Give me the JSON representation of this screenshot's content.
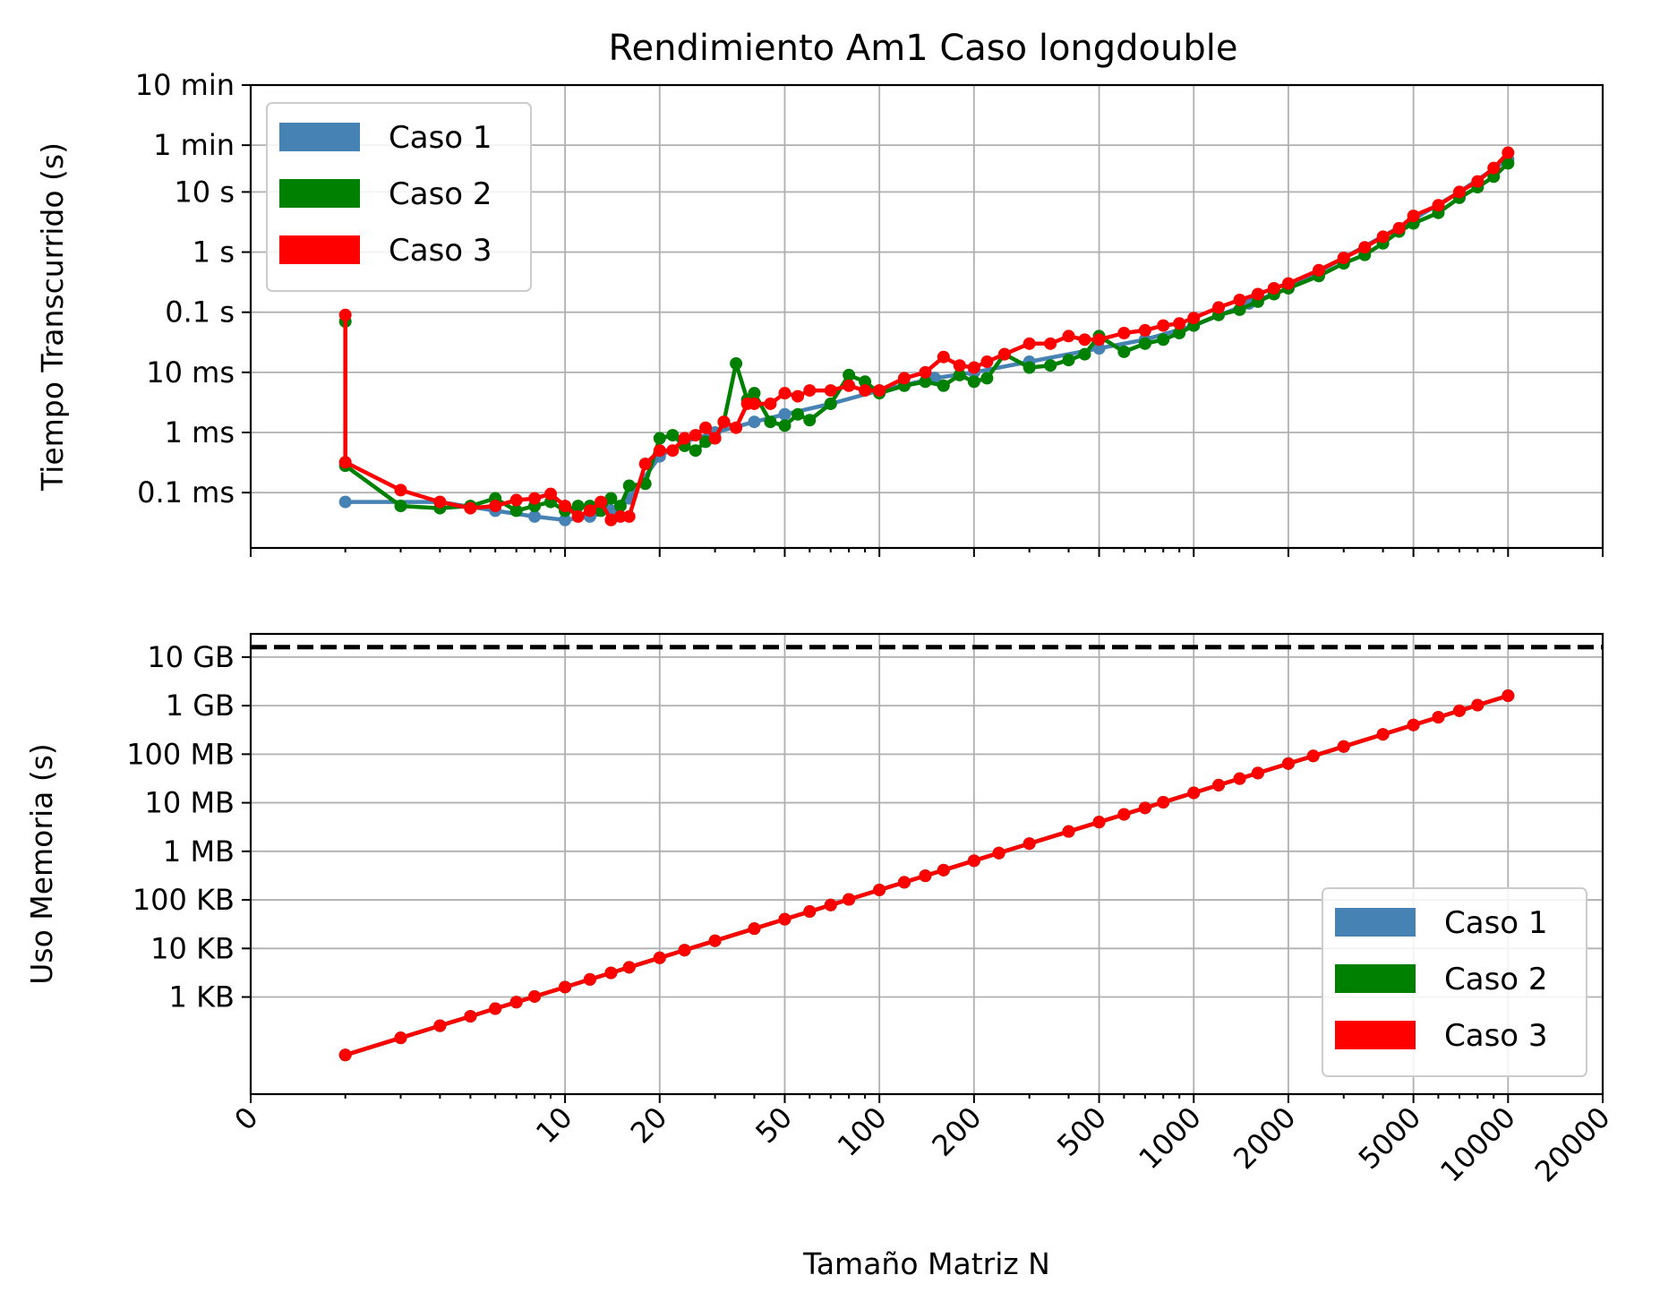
{
  "title": "Rendimiento Am1 Caso longdouble",
  "colors": {
    "Caso 1": "#4682b4",
    "Caso 2": "#008000",
    "Caso 3": "#ff0000"
  },
  "chart_data": [
    {
      "type": "line",
      "panel": "top",
      "title": "Rendimiento Am1 Caso longdouble",
      "xlabel": "",
      "ylabel": "Tiempo Transcurrido (s)",
      "xscale": "log",
      "yscale": "log",
      "xlim": [
        1,
        20000
      ],
      "ylim": [
        1.2e-05,
        600
      ],
      "grid": true,
      "legend": "top-left",
      "yticks": [
        {
          "value": 600,
          "label": "10 min"
        },
        {
          "value": 60,
          "label": "1 min"
        },
        {
          "value": 10,
          "label": "10 s"
        },
        {
          "value": 1,
          "label": "1 s"
        },
        {
          "value": 0.1,
          "label": "0.1 s"
        },
        {
          "value": 0.01,
          "label": "10 ms"
        },
        {
          "value": 0.001,
          "label": "1 ms"
        },
        {
          "value": 0.0001,
          "label": "0.1 ms"
        }
      ],
      "series": [
        {
          "name": "Caso 1",
          "x": [
            2,
            4,
            6,
            8,
            10,
            12,
            14,
            16,
            20,
            24,
            30,
            40,
            50,
            70,
            100,
            150,
            200,
            300,
            500,
            700,
            1000,
            1500,
            2000,
            3000,
            5000,
            7000,
            10000
          ],
          "y": [
            7e-05,
            7e-05,
            5e-05,
            4e-05,
            3.5e-05,
            4e-05,
            5e-05,
            8e-05,
            0.0004,
            0.0007,
            0.001,
            0.0015,
            0.002,
            0.003,
            0.005,
            0.008,
            0.01,
            0.015,
            0.025,
            0.035,
            0.06,
            0.14,
            0.25,
            0.8,
            3.5,
            10,
            35
          ]
        },
        {
          "name": "Caso 2",
          "x": [
            2,
            2,
            3,
            4,
            5,
            6,
            7,
            8,
            9,
            10,
            11,
            12,
            13,
            14,
            15,
            16,
            18,
            20,
            22,
            24,
            26,
            28,
            30,
            32,
            35,
            38,
            40,
            45,
            50,
            55,
            60,
            70,
            80,
            90,
            100,
            120,
            140,
            160,
            180,
            200,
            220,
            250,
            300,
            350,
            400,
            450,
            500,
            600,
            700,
            800,
            900,
            1000,
            1200,
            1400,
            1600,
            1800,
            2000,
            2500,
            3000,
            3500,
            4000,
            4500,
            5000,
            6000,
            7000,
            8000,
            9000,
            10000
          ],
          "y": [
            0.07,
            0.00028,
            6e-05,
            5.5e-05,
            6e-05,
            8e-05,
            5e-05,
            6e-05,
            7e-05,
            5e-05,
            6e-05,
            6e-05,
            5e-05,
            8e-05,
            6e-05,
            0.00013,
            0.00014,
            0.0008,
            0.0009,
            0.0006,
            0.0005,
            0.0007,
            0.0008,
            0.0015,
            0.014,
            0.0035,
            0.0045,
            0.0015,
            0.0013,
            0.002,
            0.0016,
            0.003,
            0.009,
            0.007,
            0.0045,
            0.006,
            0.007,
            0.006,
            0.009,
            0.007,
            0.008,
            0.02,
            0.012,
            0.013,
            0.016,
            0.02,
            0.04,
            0.022,
            0.03,
            0.035,
            0.045,
            0.06,
            0.09,
            0.11,
            0.15,
            0.2,
            0.25,
            0.4,
            0.65,
            0.9,
            1.4,
            2.2,
            3,
            4.5,
            8,
            12,
            18,
            30
          ]
        },
        {
          "name": "Caso 3",
          "x": [
            2,
            2,
            3,
            4,
            5,
            6,
            7,
            8,
            9,
            10,
            11,
            12,
            13,
            14,
            15,
            16,
            18,
            20,
            22,
            24,
            26,
            28,
            30,
            32,
            35,
            38,
            40,
            45,
            50,
            55,
            60,
            70,
            80,
            90,
            100,
            120,
            140,
            160,
            180,
            200,
            220,
            250,
            300,
            350,
            400,
            450,
            500,
            600,
            700,
            800,
            900,
            1000,
            1200,
            1400,
            1600,
            1800,
            2000,
            2500,
            3000,
            3500,
            4000,
            4500,
            5000,
            6000,
            7000,
            8000,
            9000,
            10000
          ],
          "y": [
            0.09,
            0.00032,
            0.00011,
            7e-05,
            5.5e-05,
            6e-05,
            7.5e-05,
            8e-05,
            9.5e-05,
            6e-05,
            4e-05,
            5e-05,
            7e-05,
            3.5e-05,
            4e-05,
            4e-05,
            0.0003,
            0.0005,
            0.0005,
            0.0008,
            0.0009,
            0.0012,
            0.0008,
            0.0015,
            0.0012,
            0.003,
            0.003,
            0.003,
            0.0045,
            0.004,
            0.005,
            0.005,
            0.006,
            0.005,
            0.005,
            0.008,
            0.01,
            0.018,
            0.013,
            0.012,
            0.015,
            0.02,
            0.03,
            0.03,
            0.04,
            0.035,
            0.035,
            0.045,
            0.05,
            0.06,
            0.065,
            0.08,
            0.12,
            0.16,
            0.2,
            0.25,
            0.3,
            0.5,
            0.8,
            1.2,
            1.8,
            2.5,
            4,
            6,
            10,
            15,
            25,
            45
          ]
        }
      ]
    },
    {
      "type": "line",
      "panel": "bottom",
      "xlabel": "Tamaño Matriz N",
      "ylabel": "Uso Memoria (s)",
      "xscale": "log",
      "yscale": "log",
      "xlim": [
        1,
        20000
      ],
      "ylim": [
        10,
        30000000000
      ],
      "grid": true,
      "legend": "bottom-right",
      "reference_line": {
        "y": 16000000000,
        "style": "dashed",
        "color": "#000000"
      },
      "yticks": [
        {
          "value": 10000000000,
          "label": "10 GB"
        },
        {
          "value": 1000000000,
          "label": "1 GB"
        },
        {
          "value": 100000000,
          "label": "100 MB"
        },
        {
          "value": 10000000,
          "label": "10 MB"
        },
        {
          "value": 1000000,
          "label": "1 MB"
        },
        {
          "value": 100000,
          "label": "100 KB"
        },
        {
          "value": 10000,
          "label": "10 KB"
        },
        {
          "value": 1000,
          "label": "1 KB"
        }
      ],
      "xticks": [
        {
          "value": 1,
          "label": "0"
        },
        {
          "value": 10,
          "label": "10"
        },
        {
          "value": 20,
          "label": "20"
        },
        {
          "value": 50,
          "label": "50"
        },
        {
          "value": 100,
          "label": "100"
        },
        {
          "value": 200,
          "label": "200"
        },
        {
          "value": 500,
          "label": "500"
        },
        {
          "value": 1000,
          "label": "1000"
        },
        {
          "value": 2000,
          "label": "2000"
        },
        {
          "value": 5000,
          "label": "5000"
        },
        {
          "value": 10000,
          "label": "10000"
        },
        {
          "value": 20000,
          "label": "20000"
        }
      ],
      "series": [
        {
          "name": "Caso 1",
          "x": [
            2,
            3,
            4,
            5,
            6,
            7,
            8,
            10,
            12,
            14,
            16,
            20,
            24,
            30,
            40,
            50,
            60,
            70,
            80,
            100,
            120,
            140,
            160,
            200,
            240,
            300,
            400,
            500,
            600,
            700,
            800,
            1000,
            1200,
            1400,
            1600,
            2000,
            2400,
            3000,
            4000,
            5000,
            6000,
            7000,
            8000,
            10000
          ],
          "y": [
            64,
            144,
            256,
            400,
            576,
            784,
            1024,
            1600,
            2304,
            3136,
            4096,
            6400,
            9216,
            14400,
            25600,
            40000,
            57600,
            78400,
            102400,
            160000,
            230400,
            313600,
            409600,
            640000,
            921600,
            1440000,
            2560000,
            4000000,
            5760000,
            7840000,
            10240000,
            16000000,
            23040000,
            31360000,
            40960000,
            64000000,
            92160000,
            144000000,
            256000000,
            400000000,
            576000000,
            784000000,
            1024000000,
            1600000000
          ]
        },
        {
          "name": "Caso 2",
          "x": [
            2,
            3,
            4,
            5,
            6,
            7,
            8,
            10,
            12,
            14,
            16,
            20,
            24,
            30,
            40,
            50,
            60,
            70,
            80,
            100,
            120,
            140,
            160,
            200,
            240,
            300,
            400,
            500,
            600,
            700,
            800,
            1000,
            1200,
            1400,
            1600,
            2000,
            2400,
            3000,
            4000,
            5000,
            6000,
            7000,
            8000,
            10000
          ],
          "y": [
            64,
            144,
            256,
            400,
            576,
            784,
            1024,
            1600,
            2304,
            3136,
            4096,
            6400,
            9216,
            14400,
            25600,
            40000,
            57600,
            78400,
            102400,
            160000,
            230400,
            313600,
            409600,
            640000,
            921600,
            1440000,
            2560000,
            4000000,
            5760000,
            7840000,
            10240000,
            16000000,
            23040000,
            31360000,
            40960000,
            64000000,
            92160000,
            144000000,
            256000000,
            400000000,
            576000000,
            784000000,
            1024000000,
            1600000000
          ]
        },
        {
          "name": "Caso 3",
          "x": [
            2,
            3,
            4,
            5,
            6,
            7,
            8,
            10,
            12,
            14,
            16,
            20,
            24,
            30,
            40,
            50,
            60,
            70,
            80,
            100,
            120,
            140,
            160,
            200,
            240,
            300,
            400,
            500,
            600,
            700,
            800,
            1000,
            1200,
            1400,
            1600,
            2000,
            2400,
            3000,
            4000,
            5000,
            6000,
            7000,
            8000,
            10000
          ],
          "y": [
            64,
            144,
            256,
            400,
            576,
            784,
            1024,
            1600,
            2304,
            3136,
            4096,
            6400,
            9216,
            14400,
            25600,
            40000,
            57600,
            78400,
            102400,
            160000,
            230400,
            313600,
            409600,
            640000,
            921600,
            1440000,
            2560000,
            4000000,
            5760000,
            7840000,
            10240000,
            16000000,
            23040000,
            31360000,
            40960000,
            64000000,
            92160000,
            144000000,
            256000000,
            400000000,
            576000000,
            784000000,
            1024000000,
            1600000000
          ]
        }
      ]
    }
  ]
}
